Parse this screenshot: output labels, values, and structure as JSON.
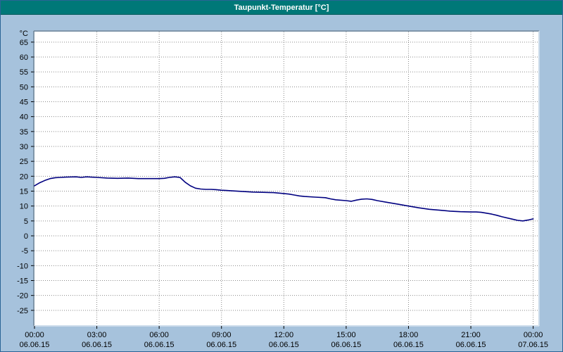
{
  "window": {
    "title": "Taupunkt-Temperatur [°C]"
  },
  "colors": {
    "background": "#a6c2dc",
    "titlebar": "#007878",
    "plot_background": "#ffffff",
    "grid": "#8a8a8a",
    "axis": "#000000",
    "line": "#000080",
    "border_shadow": "#5a6a78",
    "border_highlight": "#f0f4f8"
  },
  "chart_data": {
    "type": "line",
    "title": "Taupunkt-Temperatur [°C]",
    "unit_label": "°C",
    "xlabel": "",
    "ylabel": "°C",
    "ylim": [
      -30,
      68.5
    ],
    "xlim": [
      0,
      24.25
    ],
    "grid": "dotted",
    "y_ticks": [
      65,
      60,
      55,
      50,
      45,
      40,
      35,
      30,
      25,
      20,
      15,
      10,
      5,
      0,
      -5,
      -10,
      -15,
      -20,
      -25
    ],
    "x_ticks": [
      {
        "hour": 0,
        "time": "00:00",
        "date": "06.06.15"
      },
      {
        "hour": 3,
        "time": "03:00",
        "date": "06.06.15"
      },
      {
        "hour": 6,
        "time": "06:00",
        "date": "06.06.15"
      },
      {
        "hour": 9,
        "time": "09:00",
        "date": "06.06.15"
      },
      {
        "hour": 12,
        "time": "12:00",
        "date": "06.06.15"
      },
      {
        "hour": 15,
        "time": "15:00",
        "date": "06.06.15"
      },
      {
        "hour": 18,
        "time": "18:00",
        "date": "06.06.15"
      },
      {
        "hour": 21,
        "time": "21:00",
        "date": "06.06.15"
      },
      {
        "hour": 24,
        "time": "00:00",
        "date": "07.06.15"
      }
    ],
    "series": [
      {
        "name": "Taupunkt-Temperatur",
        "color": "#000080",
        "points": [
          [
            0,
            16.8
          ],
          [
            0.25,
            17.8
          ],
          [
            0.5,
            18.6
          ],
          [
            0.75,
            19.2
          ],
          [
            1,
            19.5
          ],
          [
            1.25,
            19.6
          ],
          [
            1.5,
            19.7
          ],
          [
            2,
            19.8
          ],
          [
            2.25,
            19.6
          ],
          [
            2.5,
            19.8
          ],
          [
            3,
            19.6
          ],
          [
            3.5,
            19.4
          ],
          [
            4,
            19.3
          ],
          [
            4.5,
            19.4
          ],
          [
            5,
            19.2
          ],
          [
            5.5,
            19.2
          ],
          [
            6,
            19.2
          ],
          [
            6.25,
            19.3
          ],
          [
            6.5,
            19.6
          ],
          [
            6.75,
            19.8
          ],
          [
            7,
            19.6
          ],
          [
            7.1,
            19.0
          ],
          [
            7.25,
            18.0
          ],
          [
            7.5,
            16.8
          ],
          [
            7.75,
            16.0
          ],
          [
            8,
            15.7
          ],
          [
            8.25,
            15.6
          ],
          [
            8.5,
            15.6
          ],
          [
            8.75,
            15.5
          ],
          [
            9,
            15.3
          ],
          [
            9.25,
            15.2
          ],
          [
            9.5,
            15.1
          ],
          [
            10,
            14.9
          ],
          [
            10.5,
            14.7
          ],
          [
            11,
            14.6
          ],
          [
            11.5,
            14.5
          ],
          [
            12,
            14.2
          ],
          [
            12.25,
            14.0
          ],
          [
            12.5,
            13.7
          ],
          [
            12.75,
            13.4
          ],
          [
            13,
            13.2
          ],
          [
            13.5,
            13.0
          ],
          [
            14,
            12.8
          ],
          [
            14.25,
            12.4
          ],
          [
            14.5,
            12.1
          ],
          [
            15,
            11.8
          ],
          [
            15.25,
            11.6
          ],
          [
            15.5,
            12.0
          ],
          [
            15.75,
            12.3
          ],
          [
            16,
            12.4
          ],
          [
            16.25,
            12.2
          ],
          [
            16.5,
            11.8
          ],
          [
            17,
            11.2
          ],
          [
            17.5,
            10.6
          ],
          [
            18,
            10.0
          ],
          [
            18.5,
            9.4
          ],
          [
            19,
            8.9
          ],
          [
            19.5,
            8.6
          ],
          [
            20,
            8.3
          ],
          [
            20.5,
            8.1
          ],
          [
            21,
            8.0
          ],
          [
            21.25,
            8.0
          ],
          [
            21.5,
            7.9
          ],
          [
            22,
            7.3
          ],
          [
            22.25,
            6.9
          ],
          [
            22.5,
            6.4
          ],
          [
            23,
            5.6
          ],
          [
            23.25,
            5.2
          ],
          [
            23.5,
            5.0
          ],
          [
            23.75,
            5.3
          ],
          [
            24,
            5.7
          ]
        ]
      }
    ]
  }
}
